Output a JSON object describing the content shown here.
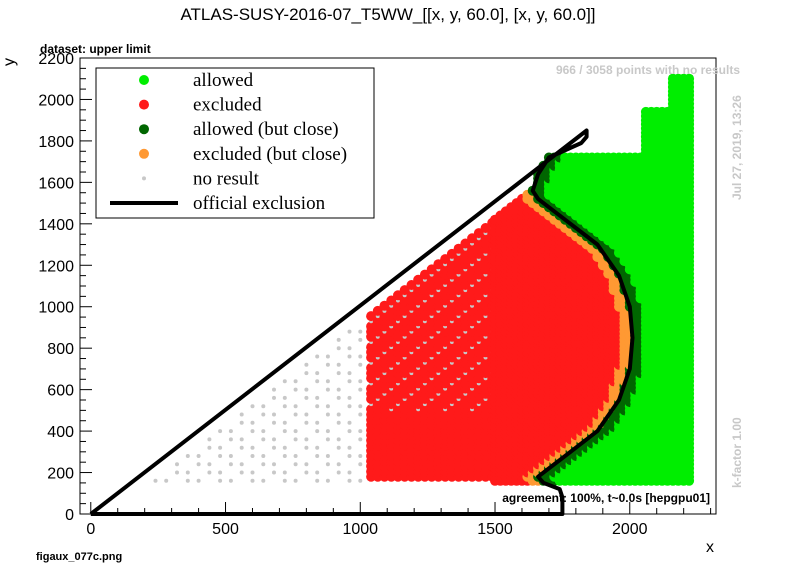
{
  "chart_data": {
    "type": "scatter",
    "title": "ATLAS-SUSY-2016-07_T5WW_[[x, y, 60.0], [x, y, 60.0]]",
    "subtitle": "dataset: upper limit",
    "xlabel": "x",
    "ylabel": "y",
    "xlim": [
      -40,
      2320
    ],
    "ylim": [
      0,
      2200
    ],
    "xticks": [
      0,
      500,
      1000,
      1500,
      2000
    ],
    "yticks": [
      0,
      200,
      400,
      600,
      800,
      1000,
      1200,
      1400,
      1600,
      1800,
      2000,
      2200
    ],
    "grid": false,
    "legend_position": "top-left",
    "legend": [
      {
        "label": "allowed",
        "color": "#00ee00",
        "marker": "dot"
      },
      {
        "label": "excluded",
        "color": "#ff1a1a",
        "marker": "dot"
      },
      {
        "label": "allowed (but close)",
        "color": "#006600",
        "marker": "dot"
      },
      {
        "label": "excluded (but close)",
        "color": "#ff9933",
        "marker": "dot"
      },
      {
        "label": "no result",
        "color": "#c8c8c8",
        "marker": "small-dot"
      },
      {
        "label": "official exclusion",
        "color": "#000000",
        "marker": "line"
      }
    ],
    "regions": {
      "no_result_triangle": {
        "x_min": 0,
        "x_max": 1040,
        "grid_step": 40
      },
      "excluded_sparse": {
        "x_min": 1040,
        "x_max": 1500,
        "grid_step": 25
      },
      "excluded_dense": {
        "x_min": 1500,
        "y_min": 160,
        "grid_step": 20
      },
      "allowed": {
        "x_max": 2220,
        "y_min": 160,
        "y_max": 2100,
        "grid_step": 20
      }
    },
    "official_exclusion": {
      "x": [
        0,
        1840,
        1840,
        1820,
        1700,
        1660,
        1640,
        1660,
        1760,
        1880,
        1960,
        2000,
        2010,
        2000,
        1960,
        1880,
        1760,
        1700,
        1660,
        1680,
        1740,
        1750,
        1750,
        0,
        0
      ],
      "y": [
        0,
        1850,
        1820,
        1790,
        1720,
        1640,
        1560,
        1520,
        1420,
        1300,
        1150,
        1000,
        850,
        700,
        550,
        400,
        280,
        220,
        180,
        150,
        120,
        80,
        0,
        0,
        0
      ]
    },
    "annotations": {
      "points_note": "966 / 3058 points with no results",
      "date": "Jul 27, 2019, 13:26",
      "kfactor": "k-factor 1.00",
      "agreement": "agreement: 100%, t~0.0s [hepgpu01]"
    }
  },
  "footer": {
    "filename": "figaux_077c.png"
  }
}
